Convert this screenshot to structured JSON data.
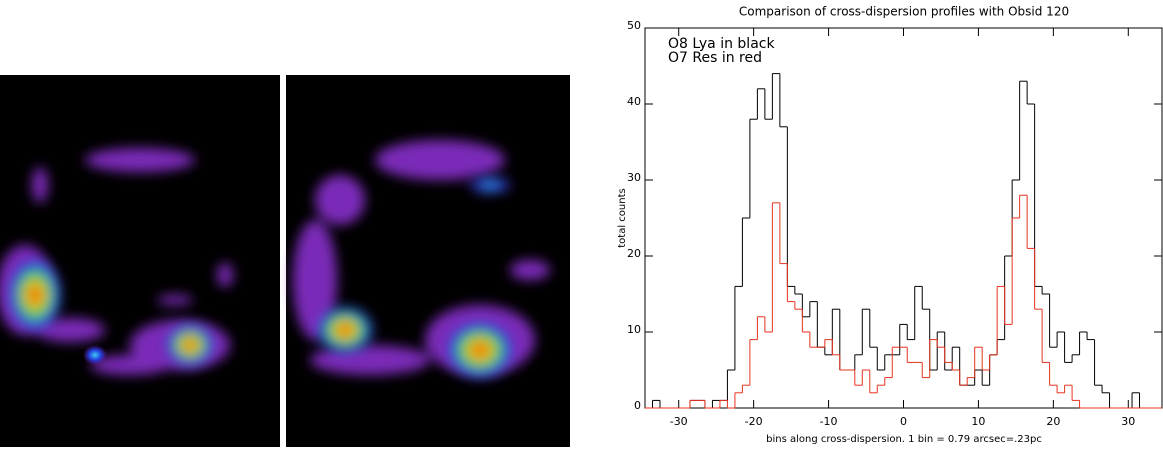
{
  "chart_data": {
    "type": "step",
    "title": "Comparison of cross-dispersion profiles with Obsid 120",
    "xlabel": "bins along cross-dispersion. 1 bin = 0.79 arcsec=.23pc",
    "ylabel": "total counts",
    "annotations": [
      "O8 Lya in black",
      "O7 Res in red"
    ],
    "x": [
      -35,
      -34,
      -33,
      -32,
      -31,
      -30,
      -29,
      -28,
      -27,
      -26,
      -25,
      -24,
      -23,
      -22,
      -21,
      -20,
      -19,
      -18,
      -17,
      -16,
      -15,
      -14,
      -13,
      -12,
      -11,
      -10,
      -9,
      -8,
      -7,
      -6,
      -5,
      -4,
      -3,
      -2,
      -1,
      0,
      1,
      2,
      3,
      4,
      5,
      6,
      7,
      8,
      9,
      10,
      11,
      12,
      13,
      14,
      15,
      16,
      17,
      18,
      19,
      20,
      21,
      22,
      23,
      24,
      25,
      26,
      27,
      28,
      29,
      30,
      31,
      32,
      33,
      34
    ],
    "series": [
      {
        "color": "#000000",
        "values": [
          2,
          0,
          1,
          0,
          0,
          0,
          0,
          1,
          1,
          0,
          1,
          1,
          5,
          16,
          25,
          38,
          42,
          38,
          44,
          37,
          16,
          15,
          12,
          14,
          8,
          7,
          13,
          5,
          5,
          7,
          13,
          8,
          5,
          7,
          7,
          11,
          9,
          16,
          13,
          5,
          10,
          5,
          8,
          3,
          3,
          5,
          3,
          7,
          9,
          20,
          30,
          43,
          40,
          16,
          15,
          8,
          10,
          6,
          7,
          10,
          9,
          3,
          2,
          0,
          0,
          0,
          2,
          0,
          0,
          0
        ]
      },
      {
        "color": "#e8321e",
        "values": [
          0,
          0,
          0,
          0,
          0,
          0,
          0,
          1,
          1,
          0,
          0,
          1,
          0,
          2,
          3,
          9,
          12,
          10,
          27,
          19,
          14,
          13,
          10,
          8,
          8,
          9,
          7,
          5,
          5,
          3,
          5,
          2,
          3,
          4,
          8,
          8,
          6,
          6,
          4,
          9,
          8,
          6,
          5,
          3,
          4,
          8,
          5,
          7,
          16,
          11,
          25,
          28,
          21,
          13,
          6,
          3,
          2,
          3,
          1,
          0,
          0,
          0,
          0,
          0,
          0,
          0,
          0,
          0,
          0,
          0
        ]
      }
    ],
    "xlim": [
      -34.5,
      34.5
    ],
    "ylim": [
      0,
      50
    ],
    "xticks": [
      -30,
      -20,
      -10,
      0,
      10,
      20,
      30
    ],
    "yticks": [
      0,
      10,
      20,
      30,
      40,
      50
    ]
  }
}
